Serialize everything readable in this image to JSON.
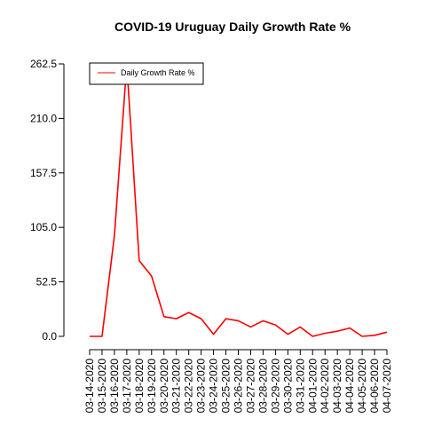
{
  "chart_data": {
    "type": "line",
    "title": "COVID-19 Uruguay Daily Growth Rate %",
    "xlabel": "",
    "ylabel": "",
    "ylim": [
      0,
      262.5
    ],
    "yticks": [
      "0.0",
      "52.5",
      "105.0",
      "157.5",
      "210.0",
      "262.5"
    ],
    "x": [
      "03-14-2020",
      "03-15-2020",
      "03-16-2020",
      "03-17-2020",
      "03-18-2020",
      "03-19-2020",
      "03-20-2020",
      "03-21-2020",
      "03-22-2020",
      "03-23-2020",
      "03-24-2020",
      "03-25-2020",
      "03-26-2020",
      "03-27-2020",
      "03-28-2020",
      "03-29-2020",
      "03-30-2020",
      "03-31-2020",
      "04-01-2020",
      "04-02-2020",
      "04-03-2020",
      "04-04-2020",
      "04-05-2020",
      "04-06-2020",
      "04-07-2020"
    ],
    "series": [
      {
        "name": "Daily Growth Rate %",
        "color": "#ff0000",
        "values": [
          0,
          0,
          97,
          262.5,
          73,
          58,
          19,
          17,
          23,
          17,
          2,
          17,
          15,
          9,
          15,
          11,
          2,
          9,
          0,
          3,
          5,
          8,
          0,
          1,
          4
        ]
      }
    ],
    "legend": {
      "position": "top-left"
    }
  }
}
